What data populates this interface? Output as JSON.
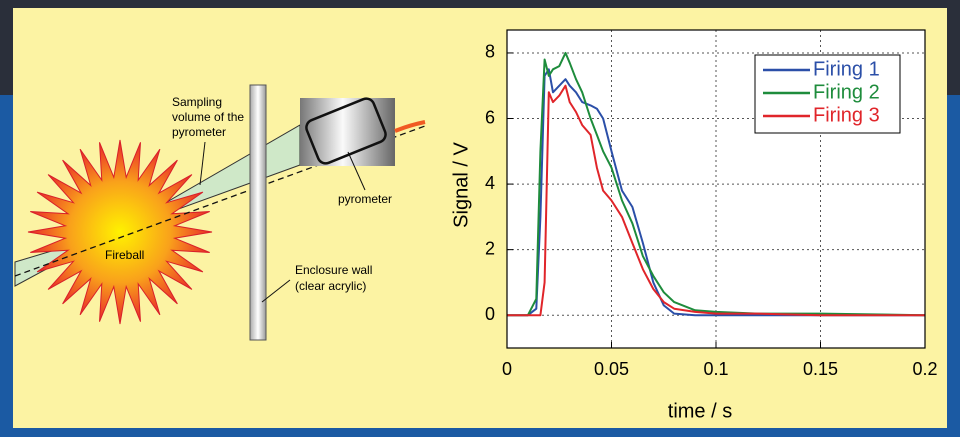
{
  "diagram": {
    "sampling_label": [
      "Sampling",
      "volume of the",
      "pyrometer"
    ],
    "pyrometer_label": "pyrometer",
    "fireball_label": "Fireball",
    "wall_label": [
      "Enclosure wall",
      "(clear acrylic)"
    ]
  },
  "chart_data": {
    "type": "line",
    "x_label": "time / s",
    "y_label": "Signal / V",
    "x": [
      0,
      0.01,
      0.014,
      0.016,
      0.018,
      0.02,
      0.022,
      0.025,
      0.028,
      0.03,
      0.033,
      0.036,
      0.04,
      0.043,
      0.046,
      0.05,
      0.055,
      0.06,
      0.065,
      0.07,
      0.075,
      0.08,
      0.09,
      0.1,
      0.12,
      0.15,
      0.2
    ],
    "series": [
      {
        "name": "Firing 1",
        "color": "#2b4fa8",
        "values": [
          0,
          0,
          0.2,
          3,
          7.3,
          7.5,
          6.8,
          7,
          7.2,
          7,
          6.8,
          6.5,
          6.4,
          6.3,
          6,
          5,
          3.8,
          3.3,
          2.2,
          1,
          0.3,
          0.05,
          0,
          0,
          0,
          0,
          0
        ]
      },
      {
        "name": "Firing 2",
        "color": "#1e8c3c",
        "values": [
          0,
          0,
          0.5,
          5,
          7.8,
          7.3,
          7.5,
          7.6,
          8,
          7.7,
          7.2,
          6.8,
          6,
          5.5,
          5,
          4.5,
          3.5,
          2.8,
          1.8,
          1.2,
          0.7,
          0.4,
          0.15,
          0.1,
          0.05,
          0.05,
          0
        ]
      },
      {
        "name": "Firing 3",
        "color": "#e0252a",
        "values": [
          0,
          0,
          0,
          0,
          1,
          6.8,
          6.5,
          6.7,
          7,
          6.5,
          6.2,
          5.8,
          5.5,
          4.5,
          3.8,
          3.5,
          3,
          2.2,
          1.4,
          0.8,
          0.4,
          0.2,
          0.1,
          0.05,
          0.05,
          0,
          0
        ]
      }
    ],
    "xlim": [
      0,
      0.2
    ],
    "ylim": [
      -1,
      8.7
    ],
    "xticks": [
      0,
      0.05,
      0.1,
      0.15,
      0.2
    ],
    "yticks": [
      0,
      2,
      4,
      6,
      8
    ],
    "grid": true,
    "legend": "top-right"
  }
}
